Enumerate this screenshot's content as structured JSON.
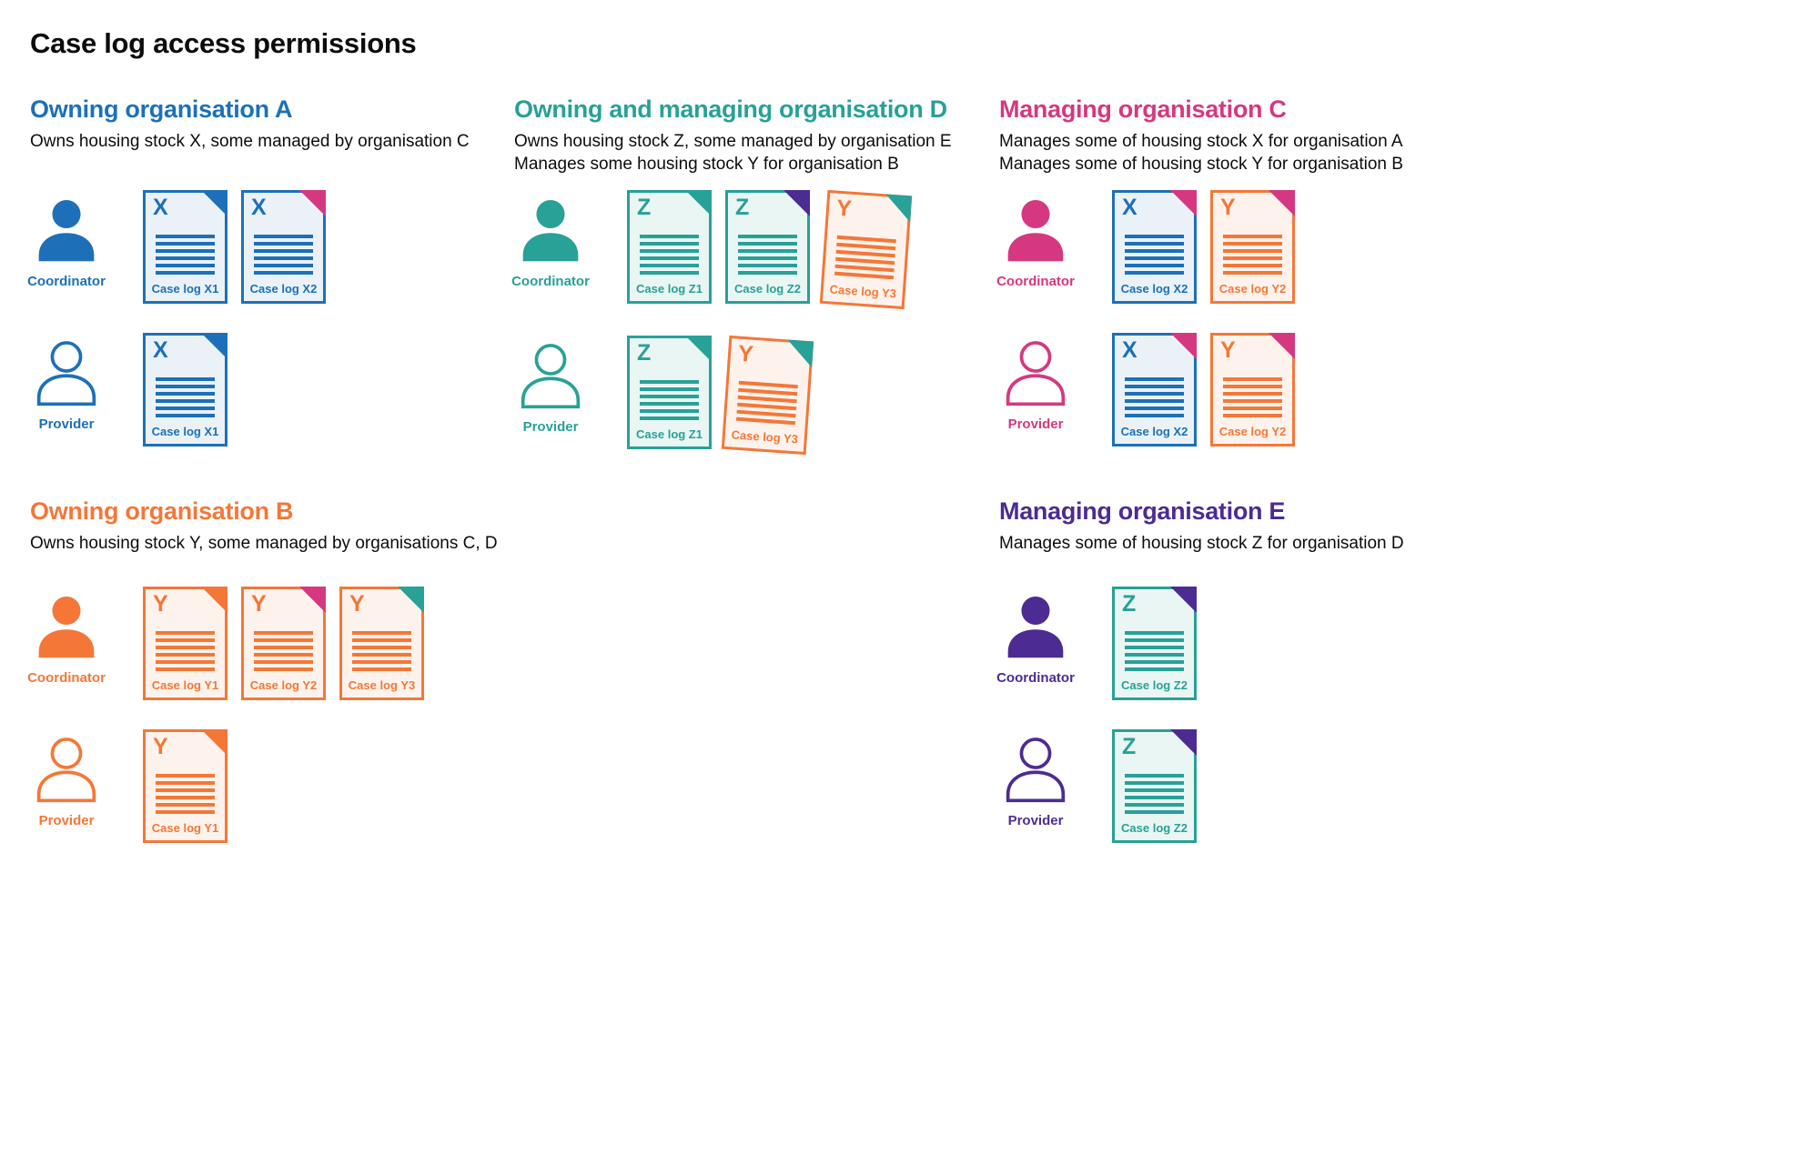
{
  "title": "Case log access permissions",
  "colors": {
    "blue": "#1d70b8",
    "teal": "#28a197",
    "pink": "#d53880",
    "orange": "#f47738",
    "purple": "#4c2c92",
    "text": "#0b0c0c",
    "blue_tint": "#eaf2f8",
    "teal_tint": "#eaf6f4",
    "orange_tint": "#fef3ec"
  },
  "sections": [
    {
      "id": "owning-organisation-a",
      "title": "Owning organisation A",
      "color": "blue",
      "description_lines": [
        "Owns housing stock X, some managed by organisation C"
      ],
      "rows": [
        {
          "role": "Coordinator",
          "person_style": "filled",
          "docs": [
            {
              "letter": "X",
              "label": "Case log X1",
              "doc_color": "blue",
              "corner_color": "blue"
            },
            {
              "letter": "X",
              "label": "Case log X2",
              "doc_color": "blue",
              "corner_color": "pink"
            }
          ]
        },
        {
          "role": "Provider",
          "person_style": "outline",
          "docs": [
            {
              "letter": "X",
              "label": "Case log X1",
              "doc_color": "blue",
              "corner_color": "blue"
            }
          ]
        }
      ]
    },
    {
      "id": "owning-and-managing-organisation-d",
      "title": "Owning and managing organisation D",
      "color": "teal",
      "description_lines": [
        "Owns housing stock Z, some managed by organisation E",
        "Manages some housing stock Y for organisation B"
      ],
      "rows": [
        {
          "role": "Coordinator",
          "person_style": "filled",
          "docs": [
            {
              "letter": "Z",
              "label": "Case log Z1",
              "doc_color": "teal",
              "corner_color": "teal"
            },
            {
              "letter": "Z",
              "label": "Case log Z2",
              "doc_color": "teal",
              "corner_color": "purple"
            },
            {
              "letter": "Y",
              "label": "Case log Y3",
              "doc_color": "orange",
              "corner_color": "teal",
              "tilt": true
            }
          ]
        },
        {
          "role": "Provider",
          "person_style": "outline",
          "docs": [
            {
              "letter": "Z",
              "label": "Case log Z1",
              "doc_color": "teal",
              "corner_color": "teal"
            },
            {
              "letter": "Y",
              "label": "Case log Y3",
              "doc_color": "orange",
              "corner_color": "teal",
              "tilt": true
            }
          ]
        }
      ]
    },
    {
      "id": "managing-organisation-c",
      "title": "Managing organisation C",
      "color": "pink",
      "description_lines": [
        "Manages some of housing stock X for organisation A",
        "Manages some of housing stock Y for organisation B"
      ],
      "rows": [
        {
          "role": "Coordinator",
          "person_style": "filled",
          "docs": [
            {
              "letter": "X",
              "label": "Case log X2",
              "doc_color": "blue",
              "corner_color": "pink"
            },
            {
              "letter": "Y",
              "label": "Case log Y2",
              "doc_color": "orange",
              "corner_color": "pink"
            }
          ]
        },
        {
          "role": "Provider",
          "person_style": "outline",
          "docs": [
            {
              "letter": "X",
              "label": "Case log X2",
              "doc_color": "blue",
              "corner_color": "pink"
            },
            {
              "letter": "Y",
              "label": "Case log Y2",
              "doc_color": "orange",
              "corner_color": "pink"
            }
          ]
        }
      ]
    },
    {
      "id": "owning-organisation-b",
      "title": "Owning organisation B",
      "color": "orange",
      "description_lines": [
        "Owns housing stock Y, some managed by organisations C, D"
      ],
      "rows": [
        {
          "role": "Coordinator",
          "person_style": "filled",
          "docs": [
            {
              "letter": "Y",
              "label": "Case log Y1",
              "doc_color": "orange",
              "corner_color": "orange"
            },
            {
              "letter": "Y",
              "label": "Case log Y2",
              "doc_color": "orange",
              "corner_color": "pink"
            },
            {
              "letter": "Y",
              "label": "Case log Y3",
              "doc_color": "orange",
              "corner_color": "teal"
            }
          ]
        },
        {
          "role": "Provider",
          "person_style": "outline",
          "docs": [
            {
              "letter": "Y",
              "label": "Case log Y1",
              "doc_color": "orange",
              "corner_color": "orange"
            }
          ]
        }
      ]
    },
    {
      "id": "managing-organisation-e",
      "title": "Managing organisation E",
      "color": "purple",
      "description_lines": [
        "Manages some of housing stock Z for organisation D"
      ],
      "rows": [
        {
          "role": "Coordinator",
          "person_style": "filled",
          "docs": [
            {
              "letter": "Z",
              "label": "Case log Z2",
              "doc_color": "teal",
              "corner_color": "purple"
            }
          ]
        },
        {
          "role": "Provider",
          "person_style": "outline",
          "docs": [
            {
              "letter": "Z",
              "label": "Case log Z2",
              "doc_color": "teal",
              "corner_color": "purple"
            }
          ]
        }
      ]
    }
  ]
}
